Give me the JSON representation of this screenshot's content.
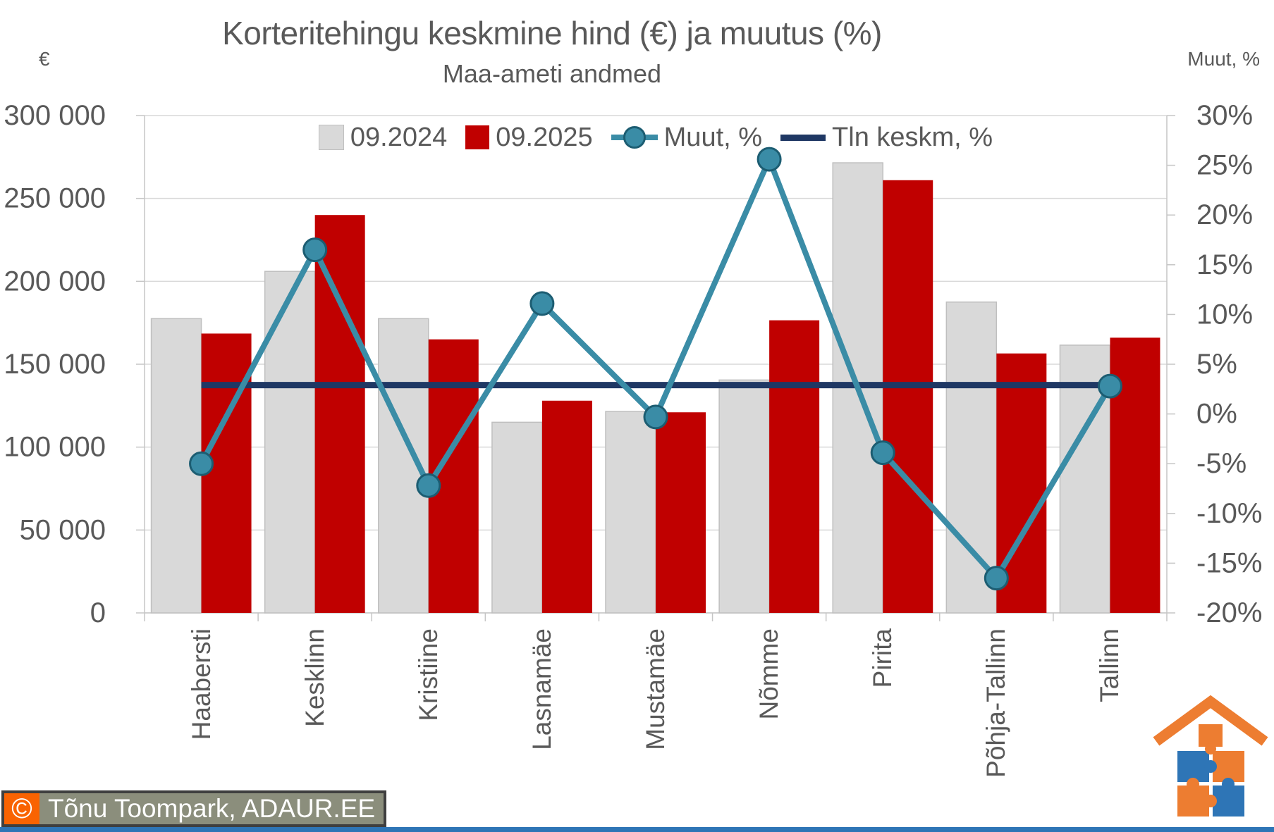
{
  "title": "Korteritehingu keskmine hind (€) ja muutus (%)",
  "subtitle": "Maa-ameti andmed",
  "legend": {
    "items": [
      {
        "label": "09.2024",
        "swatch": "square",
        "color": "#D9D9D9"
      },
      {
        "label": "09.2025",
        "swatch": "square",
        "color": "#C00000"
      },
      {
        "label": "Muut, %",
        "swatch": "line-marker",
        "color": "#3A8CA6"
      },
      {
        "label": "Tln keskm, %",
        "swatch": "line",
        "color": "#1F3864"
      }
    ]
  },
  "chart_data": {
    "type": "bar",
    "subtype": "grouped bars with line series on secondary axis",
    "categories": [
      "Haabersti",
      "Kesklinn",
      "Kristiine",
      "Lasnamäe",
      "Mustamäe",
      "Nõmme",
      "Pirita",
      "Põhja-Tallinn",
      "Tallinn"
    ],
    "series": [
      {
        "name": "09.2024",
        "type": "bar",
        "axis": "left",
        "color": "#D9D9D9",
        "values": [
          177500,
          206000,
          177500,
          115000,
          121500,
          140500,
          271500,
          187500,
          161500
        ]
      },
      {
        "name": "09.2025",
        "type": "bar",
        "axis": "left",
        "color": "#C00000",
        "values": [
          168500,
          240000,
          165000,
          128000,
          121000,
          176500,
          261000,
          156500,
          166000
        ]
      },
      {
        "name": "Muut, %",
        "type": "line",
        "axis": "right",
        "color": "#3A8CA6",
        "values": [
          -5.0,
          16.5,
          -7.2,
          11.1,
          -0.3,
          25.6,
          -3.9,
          -16.5,
          2.8
        ]
      },
      {
        "name": "Tln keskm, %",
        "type": "flat-line",
        "axis": "right",
        "color": "#1F3864",
        "value": 2.9
      }
    ],
    "left_axis": {
      "title": "€",
      "min": 0,
      "max": 300000,
      "step": 50000,
      "ticks": [
        "300 000",
        "250 000",
        "200 000",
        "150 000",
        "100 000",
        "50 000",
        "0"
      ]
    },
    "right_axis": {
      "title": "Muut, %",
      "min": -20,
      "max": 30,
      "step": 5,
      "ticks": [
        "30%",
        "25%",
        "20%",
        "15%",
        "10%",
        "5%",
        "0%",
        "-5%",
        "-10%",
        "-15%",
        "-20%"
      ]
    },
    "grid": true,
    "legend_position": "top-center-inside"
  },
  "watermark": {
    "symbol": "©",
    "text": "Tõnu Toompark, ADAUR.EE"
  },
  "colors": {
    "red": "#C00000",
    "gray": "#D9D9D9",
    "gray_border": "#BFBFBF",
    "teal": "#3A8CA6",
    "teal_dark": "#1C5D72",
    "navy": "#1F3864",
    "text": "#595959",
    "grid": "#D9D9D9",
    "axis": "#C6C6C6",
    "watermark_bg": "#8B8E7C",
    "watermark_orange": "#F96302",
    "watermark_border": "#3F3F3F",
    "footer_strip": "#2E75B6",
    "logo_orange": "#ED7D31",
    "logo_blue": "#2E75B6"
  }
}
